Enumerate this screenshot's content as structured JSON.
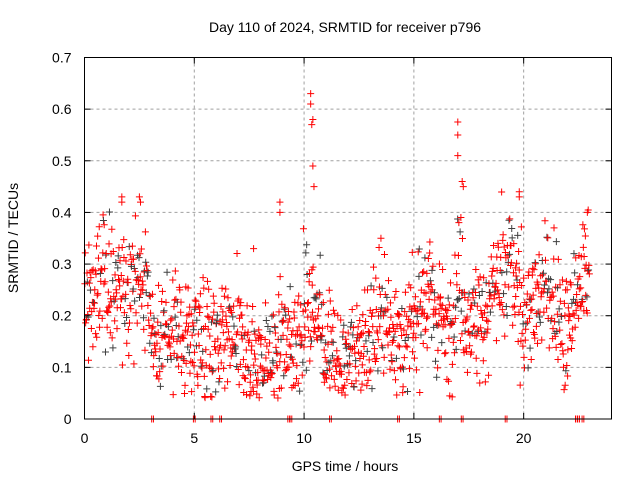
{
  "chart_data": {
    "type": "scatter",
    "title": "Day 110 of 2024, SRMTID for receiver p796",
    "xlabel": "GPS time / hours",
    "ylabel": "SRMTID / TECUs",
    "xlim": [
      0,
      24
    ],
    "ylim": [
      0,
      0.7
    ],
    "xticks": [
      "0",
      "5",
      "10",
      "15",
      "20"
    ],
    "yticks": [
      "0",
      "0.1",
      "0.2",
      "0.3",
      "0.4",
      "0.5",
      "0.6",
      "0.7"
    ],
    "grid": true,
    "marker": "+",
    "colors": {
      "primary": "#ff0000",
      "secondary": "#404040"
    },
    "note_profile": "half-hourly typical SRMTID level; points scatter about this level",
    "profile_hours": [
      0,
      0.5,
      1,
      1.5,
      2,
      2.5,
      3,
      3.5,
      4,
      4.5,
      5,
      5.5,
      6,
      6.5,
      7,
      7.5,
      8,
      8.5,
      9,
      9.5,
      10,
      10.5,
      11,
      11.5,
      12,
      12.5,
      13,
      13.5,
      14,
      14.5,
      15,
      15.5,
      16,
      16.5,
      17,
      17.5,
      18,
      18.5,
      19,
      19.5,
      20,
      20.5,
      21,
      21.5,
      22,
      22.5,
      23
    ],
    "profile_values": [
      0.2,
      0.25,
      0.28,
      0.22,
      0.25,
      0.27,
      0.2,
      0.13,
      0.2,
      0.15,
      0.17,
      0.15,
      0.12,
      0.15,
      0.15,
      0.13,
      0.12,
      0.1,
      0.15,
      0.13,
      0.2,
      0.22,
      0.15,
      0.12,
      0.12,
      0.13,
      0.17,
      0.22,
      0.18,
      0.13,
      0.18,
      0.22,
      0.22,
      0.15,
      0.28,
      0.2,
      0.18,
      0.25,
      0.25,
      0.27,
      0.2,
      0.22,
      0.25,
      0.22,
      0.15,
      0.25,
      0.3
    ],
    "peaks": [
      [
        10.3,
        0.63
      ],
      [
        10.3,
        0.61
      ],
      [
        10.4,
        0.58
      ],
      [
        10.35,
        0.57
      ],
      [
        17.0,
        0.575
      ],
      [
        17.0,
        0.55
      ],
      [
        17.0,
        0.51
      ],
      [
        10.4,
        0.49
      ],
      [
        10.45,
        0.45
      ],
      [
        8.9,
        0.42
      ],
      [
        8.9,
        0.4
      ],
      [
        1.7,
        0.43
      ],
      [
        1.7,
        0.42
      ],
      [
        2.5,
        0.43
      ],
      [
        2.55,
        0.42
      ],
      [
        19.8,
        0.44
      ],
      [
        19.8,
        0.43
      ],
      [
        17.2,
        0.46
      ],
      [
        17.25,
        0.45
      ],
      [
        22.9,
        0.4
      ],
      [
        7.7,
        0.33
      ],
      [
        13.5,
        0.35
      ]
    ],
    "zero_points": [
      3.1,
      5.0,
      5.8,
      6.2,
      9.3,
      9.4,
      11.2,
      14.3,
      16.2,
      17.2,
      19.2,
      22.4,
      22.5,
      22.7
    ]
  }
}
